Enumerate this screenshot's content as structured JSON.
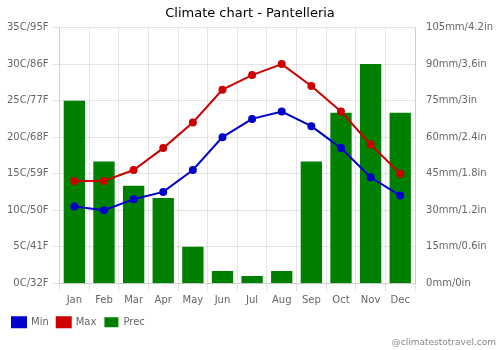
{
  "chart_data": {
    "type": "bar",
    "title": "Climate chart - Pantelleria",
    "categories": [
      "Jan",
      "Feb",
      "Mar",
      "Apr",
      "May",
      "Jun",
      "Jul",
      "Aug",
      "Sep",
      "Oct",
      "Nov",
      "Dec"
    ],
    "series": [
      {
        "name": "Prec",
        "type": "bar",
        "axis": "y2",
        "color": "#008000",
        "values": [
          75,
          50,
          40,
          35,
          15,
          5,
          3,
          5,
          50,
          70,
          90,
          70
        ]
      },
      {
        "name": "Min",
        "type": "line",
        "color": "#0000CD",
        "marker": "circle",
        "values": [
          10.5,
          10.0,
          11.5,
          12.5,
          15.5,
          20.0,
          22.5,
          23.5,
          21.5,
          18.5,
          14.5,
          12.0
        ]
      },
      {
        "name": "Max",
        "type": "line",
        "color": "#CC0000",
        "marker": "circle",
        "values": [
          14.0,
          14.0,
          15.5,
          18.5,
          22.0,
          26.5,
          28.5,
          30.0,
          27.0,
          23.5,
          19.0,
          15.0
        ]
      }
    ],
    "ylim": [
      0,
      35
    ],
    "yticks": [
      {
        "value": 0,
        "label": "0C/32F"
      },
      {
        "value": 5,
        "label": "5C/41F"
      },
      {
        "value": 10,
        "label": "10C/50F"
      },
      {
        "value": 15,
        "label": "15C/59F"
      },
      {
        "value": 20,
        "label": "20C/68F"
      },
      {
        "value": 25,
        "label": "25C/77F"
      },
      {
        "value": 30,
        "label": "30C/86F"
      },
      {
        "value": 35,
        "label": "35C/95F"
      }
    ],
    "y2lim": [
      0,
      105
    ],
    "y2ticks": [
      {
        "value": 0,
        "label": "0mm/0in"
      },
      {
        "value": 15,
        "label": "15mm/0.6in"
      },
      {
        "value": 30,
        "label": "30mm/1.2in"
      },
      {
        "value": 45,
        "label": "45mm/1.8in"
      },
      {
        "value": 60,
        "label": "60mm/2.4in"
      },
      {
        "value": 75,
        "label": "75mm/3in"
      },
      {
        "value": 90,
        "label": "90mm/3.6in"
      },
      {
        "value": 105,
        "label": "105mm/4.2in"
      }
    ],
    "grid": true,
    "legend": "bottom",
    "annotations": [
      "@climatestotravel.com"
    ]
  }
}
